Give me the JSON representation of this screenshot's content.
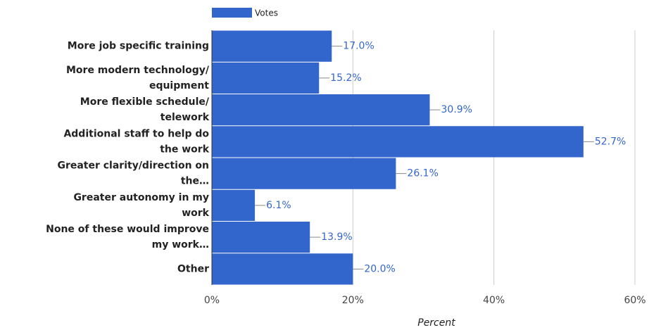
{
  "chart_data": {
    "type": "bar",
    "orientation": "horizontal",
    "categories": [
      [
        "More job specific training"
      ],
      [
        "More modern technology/",
        "equipment"
      ],
      [
        "More flexible schedule/",
        "telework"
      ],
      [
        "Additional staff to help do",
        "the work"
      ],
      [
        "Greater clarity/direction on",
        "the…"
      ],
      [
        "Greater autonomy in my",
        "work"
      ],
      [
        "None of these would improve",
        "my work…"
      ],
      [
        "Other"
      ]
    ],
    "series": [
      {
        "name": "Votes",
        "color": "#3366cc",
        "values": [
          17.0,
          15.2,
          30.9,
          52.7,
          26.1,
          6.1,
          13.9,
          20.0
        ],
        "value_labels": [
          "17.0%",
          "15.2%",
          "30.9%",
          "52.7%",
          "26.1%",
          "6.1%",
          "13.9%",
          "20.0%"
        ]
      }
    ],
    "xlim": [
      0,
      60
    ],
    "xticks": [
      {
        "value": 0,
        "label": "0%"
      },
      {
        "value": 20,
        "label": "20%"
      },
      {
        "value": 40,
        "label": "40%"
      },
      {
        "value": 60,
        "label": "60%"
      }
    ],
    "xlabel": "Percent",
    "grid": true,
    "legend": "top"
  }
}
